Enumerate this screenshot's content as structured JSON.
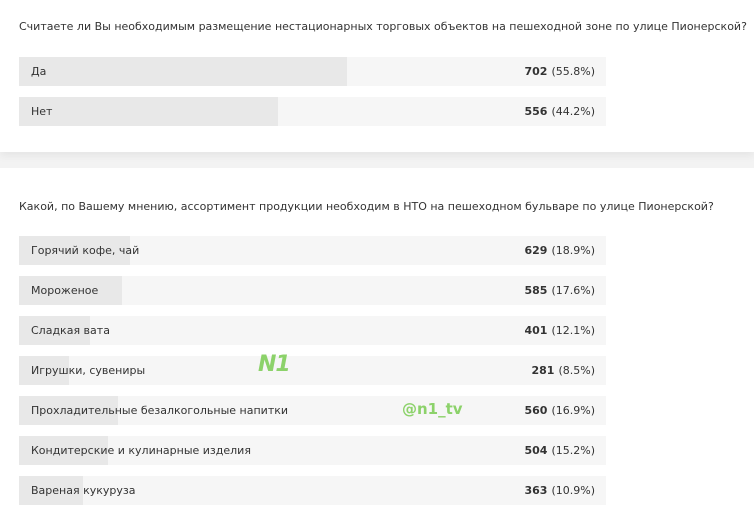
{
  "polls": [
    {
      "question": "Считаете ли Вы необходимым размещение нестационарных торговых объектов на пешеходной зоне по улице Пионерской?",
      "options": [
        {
          "label": "Да",
          "count": 702,
          "percent": 55.8,
          "percent_label": "(55.8%)"
        },
        {
          "label": "Нет",
          "count": 556,
          "percent": 44.2,
          "percent_label": "(44.2%)"
        }
      ]
    },
    {
      "question": "Какой, по Вашему мнению, ассортимент продукции необходим в НТО на пешеходном бульваре по улице Пионерской?",
      "options": [
        {
          "label": "Горячий кофе, чай",
          "count": 629,
          "percent": 18.9,
          "percent_label": "(18.9%)"
        },
        {
          "label": "Мороженое",
          "count": 585,
          "percent": 17.6,
          "percent_label": "(17.6%)"
        },
        {
          "label": "Сладкая вата",
          "count": 401,
          "percent": 12.1,
          "percent_label": "(12.1%)"
        },
        {
          "label": "Игрушки, сувениры",
          "count": 281,
          "percent": 8.5,
          "percent_label": "(8.5%)"
        },
        {
          "label": "Прохладительные безалкогольные напитки",
          "count": 560,
          "percent": 16.9,
          "percent_label": "(16.9%)"
        },
        {
          "label": "Кондитерские и кулинарные изделия",
          "count": 504,
          "percent": 15.2,
          "percent_label": "(15.2%)"
        },
        {
          "label": "Вареная кукуруза",
          "count": 363,
          "percent": 10.9,
          "percent_label": "(10.9%)"
        }
      ]
    }
  ],
  "watermark": {
    "logo": "N1",
    "handle": "@n1_tv"
  }
}
